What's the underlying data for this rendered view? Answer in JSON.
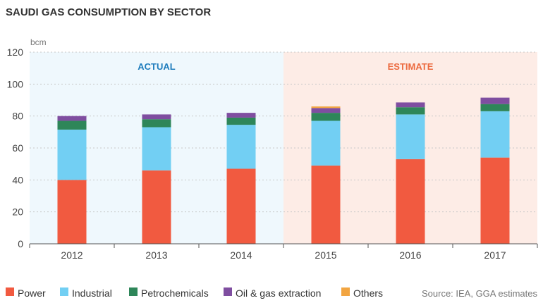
{
  "chart_data": {
    "type": "bar",
    "stacked": true,
    "title": "SAUDI GAS CONSUMPTION BY SECTOR",
    "ylabel": "bcm",
    "ylim": [
      0,
      120
    ],
    "yticks": [
      0,
      20,
      40,
      60,
      80,
      100,
      120
    ],
    "categories": [
      "2012",
      "2013",
      "2014",
      "2015",
      "2016",
      "2017"
    ],
    "series": [
      {
        "name": "Power",
        "color": "#f15a40",
        "values": [
          40,
          46,
          47,
          49,
          53,
          54
        ]
      },
      {
        "name": "Industrial",
        "color": "#72cff3",
        "values": [
          31.5,
          27,
          27.5,
          28,
          28,
          29
        ]
      },
      {
        "name": "Petrochemicals",
        "color": "#2e8659",
        "values": [
          5.5,
          5,
          4.5,
          5,
          4.5,
          4.5
        ]
      },
      {
        "name": "Oil & gas extraction",
        "color": "#7f4ea0",
        "values": [
          3,
          3,
          3,
          3,
          3,
          4
        ]
      },
      {
        "name": "Others",
        "color": "#f2a541",
        "values": [
          0,
          0,
          0,
          1,
          0,
          0
        ]
      }
    ],
    "regions": [
      {
        "label": "ACTUAL",
        "categories": [
          "2012",
          "2013",
          "2014"
        ],
        "color": "#eff8fd",
        "label_color": "#1f7dbd"
      },
      {
        "label": "ESTIMATE",
        "categories": [
          "2015",
          "2016",
          "2017"
        ],
        "color": "#fdece6",
        "label_color": "#ec6a3f"
      }
    ],
    "legend": [
      "Power",
      "Industrial",
      "Petrochemicals",
      "Oil & gas extraction",
      "Others"
    ],
    "source": "Source: IEA, GGA estimates"
  }
}
